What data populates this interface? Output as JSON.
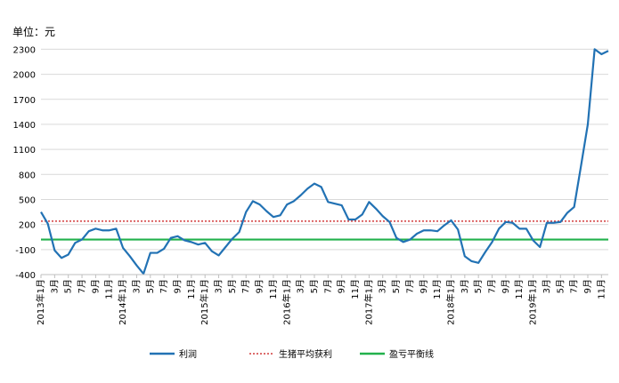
{
  "chart_data": {
    "type": "line",
    "unit_label": "单位：元",
    "ylim": [
      -400,
      2400
    ],
    "yticks": [
      -400,
      -100,
      200,
      500,
      800,
      1100,
      1400,
      1700,
      2000,
      2300
    ],
    "grid": true,
    "legend_position": "bottom",
    "x_tick_labels": [
      "2013年1月",
      "3月",
      "5月",
      "7月",
      "9月",
      "11月",
      "2014年1月",
      "3月",
      "5月",
      "7月",
      "9月",
      "11月",
      "2015年1月",
      "3月",
      "5月",
      "7月",
      "9月",
      "11月",
      "2016年1月",
      "3月",
      "5月",
      "7月",
      "9月",
      "11月",
      "2017年1月",
      "3月",
      "5月",
      "7月",
      "9月",
      "11月",
      "2018年1月",
      "3月",
      "5月",
      "7月",
      "9月",
      "11月",
      "2019年1月",
      "3月",
      "5月",
      "7月",
      "9月",
      "11月"
    ],
    "series": [
      {
        "name": "利润",
        "style": "solid",
        "color": "#2272b4",
        "values": [
          350,
          210,
          -110,
          -200,
          -160,
          -20,
          20,
          120,
          150,
          130,
          130,
          150,
          -80,
          -180,
          -290,
          -390,
          -140,
          -140,
          -90,
          40,
          60,
          10,
          -10,
          -40,
          -20,
          -120,
          -170,
          -70,
          30,
          110,
          350,
          480,
          440,
          360,
          290,
          310,
          440,
          480,
          550,
          630,
          690,
          650,
          470,
          450,
          430,
          260,
          260,
          320,
          470,
          390,
          300,
          230,
          40,
          -10,
          20,
          90,
          130,
          130,
          120,
          190,
          250,
          140,
          -180,
          -240,
          -260,
          -130,
          -10,
          150,
          230,
          220,
          150,
          150,
          10,
          -70,
          220,
          220,
          230,
          340,
          410,
          900,
          1400,
          2300,
          2240,
          2280
        ]
      },
      {
        "name": "生猪平均获利",
        "style": "dotted",
        "color": "#d23c3c",
        "value": 240
      },
      {
        "name": "盈亏平衡线",
        "style": "solid",
        "color": "#22b14c",
        "value": 20
      }
    ]
  }
}
